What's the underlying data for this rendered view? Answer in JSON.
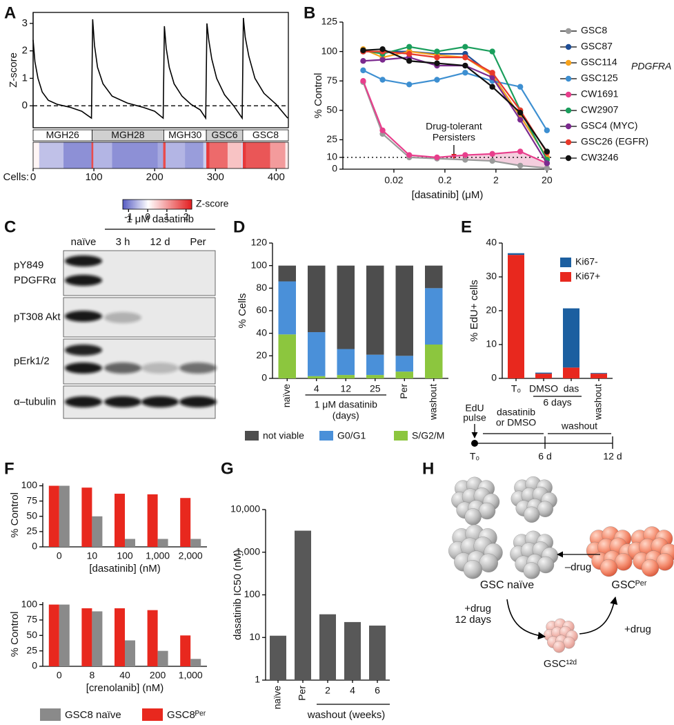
{
  "panel_labels": [
    "A",
    "B",
    "C",
    "D",
    "E",
    "F",
    "G",
    "H"
  ],
  "chart_data": [
    {
      "type": "line",
      "ylabel": "Z-score",
      "color": "#000000",
      "x": [
        0,
        3,
        8,
        15,
        25,
        40,
        60,
        80,
        96,
        98,
        101,
        106,
        115,
        130,
        155,
        180,
        200,
        214,
        216,
        219,
        224,
        232,
        245,
        260,
        275,
        284,
        286,
        289,
        294,
        302,
        315,
        330,
        344,
        346,
        349,
        355,
        365,
        380,
        400,
        419
      ],
      "values": [
        2.4,
        1.6,
        1.0,
        0.5,
        0.2,
        0.05,
        -0.05,
        -0.2,
        -0.45,
        3.15,
        2.2,
        1.4,
        0.8,
        0.35,
        0.1,
        -0.05,
        -0.2,
        -0.45,
        2.9,
        2.1,
        1.4,
        0.8,
        0.35,
        0.05,
        -0.15,
        -0.45,
        3.0,
        2.4,
        1.7,
        1.0,
        0.4,
        0,
        -0.45,
        3.2,
        2.5,
        1.8,
        1.0,
        0.45,
        0.05,
        -0.45
      ],
      "ylim": [
        -0.8,
        3.4
      ],
      "yticks": [
        0,
        1,
        2,
        3
      ],
      "xlim": [
        0,
        420
      ],
      "xticks": [
        0,
        100,
        200,
        300,
        400
      ],
      "xlabel": "Cells:",
      "reference_line": 0,
      "groups": [
        {
          "name": "MGH26",
          "start": 0,
          "end": 97
        },
        {
          "name": "MGH28",
          "start": 97,
          "end": 215
        },
        {
          "name": "MGH30",
          "start": 215,
          "end": 285
        },
        {
          "name": "GSC6",
          "start": 285,
          "end": 345
        },
        {
          "name": "GSC8",
          "start": 345,
          "end": 420
        }
      ],
      "heatmap": {
        "bins": [
          0,
          10,
          50,
          96,
          99,
          130,
          205,
          214,
          218,
          250,
          280,
          285,
          290,
          320,
          343,
          345,
          350,
          390,
          415,
          420
        ],
        "values": [
          0.1,
          -0.5,
          -0.9,
          1.8,
          -0.6,
          -0.9,
          -0.7,
          1.8,
          -0.6,
          -0.8,
          -0.4,
          2.0,
          1.5,
          0.6,
          -0.3,
          2.0,
          1.7,
          1.0,
          0.2
        ],
        "clim": [
          -1.3,
          2.3
        ],
        "cticks": [
          -1,
          0,
          1,
          2
        ],
        "clabel": "Z-score",
        "colors": [
          "#5a5fc4",
          "#ffffff",
          "#e31a1c"
        ]
      }
    },
    {
      "type": "line",
      "xlabel": "[dasatinib] (μM)",
      "ylabel": "% Control",
      "xlog": true,
      "x": [
        0.005,
        0.012,
        0.04,
        0.14,
        0.5,
        1.7,
        6,
        20
      ],
      "xlim": [
        0.002,
        25
      ],
      "xticks": [
        0.02,
        0.2,
        2,
        20
      ],
      "ylim": [
        0,
        125
      ],
      "yticks": [
        0,
        10,
        25,
        50,
        75,
        100,
        125
      ],
      "reference_line": 10,
      "shade_between": [
        0,
        4
      ],
      "shade_color": "#f2c6d8",
      "annotation": [
        "Drug-tolerant",
        "Persisters"
      ],
      "gene_label": "PDGFRA",
      "legend": "right",
      "series": [
        {
          "name": "GSC8",
          "color": "#9a9a9a",
          "values": [
            74,
            30,
            10,
            9,
            8,
            7,
            3,
            1
          ]
        },
        {
          "name": "GSC87",
          "color": "#1f4e96",
          "values": [
            100,
            100,
            100,
            98,
            98,
            80,
            45,
            10
          ]
        },
        {
          "name": "GSC114",
          "color": "#f7a21b",
          "values": [
            102,
            95,
            100,
            97,
            95,
            80,
            45,
            10
          ]
        },
        {
          "name": "GSC125",
          "color": "#3d8fd1",
          "values": [
            84,
            76,
            72,
            76,
            82,
            75,
            70,
            33
          ]
        },
        {
          "name": "CW1691",
          "color": "#e83e8c",
          "values": [
            75,
            33,
            12,
            10,
            12,
            13,
            15,
            5
          ]
        },
        {
          "name": "CW2907",
          "color": "#1a9e5c",
          "values": [
            101,
            98,
            104,
            100,
            104,
            100,
            50,
            8
          ]
        },
        {
          "name": "GSC4 (MYC)",
          "color": "#7b2a8f",
          "values": [
            92,
            93,
            95,
            88,
            88,
            78,
            42,
            5
          ]
        },
        {
          "name": "GSC26 (EGFR)",
          "color": "#e8392a",
          "values": [
            100,
            100,
            98,
            95,
            95,
            82,
            50,
            14
          ]
        },
        {
          "name": "CW3246",
          "color": "#111111",
          "values": [
            101,
            102,
            92,
            90,
            88,
            70,
            48,
            15
          ]
        }
      ]
    },
    {
      "type": "blot",
      "header": "1 μM dasatinib",
      "lanes": [
        "naïve",
        "3 h",
        "12 d",
        "Per"
      ],
      "rows": [
        [
          "pY849",
          "PDGFRα"
        ],
        [
          "pT308 Akt"
        ],
        [
          "pErk1/2"
        ],
        [
          "α–tubulin"
        ]
      ]
    },
    {
      "type": "stacked_bar",
      "ylabel": "% Cells",
      "categories": [
        "naïve",
        "4",
        "12",
        "25",
        "Per",
        "washout"
      ],
      "group_label": [
        "1 μM dasatinib",
        "(days)"
      ],
      "ylim": [
        0,
        120
      ],
      "yticks": [
        0,
        20,
        40,
        60,
        80,
        100,
        120
      ],
      "legend": "bottom",
      "series": [
        {
          "name": "S/G2/M",
          "color": "#8cc63e",
          "values": [
            39,
            2,
            3,
            3,
            6,
            30
          ]
        },
        {
          "name": "G0/G1",
          "color": "#4a90d9",
          "values": [
            47,
            39,
            23,
            18,
            14,
            50
          ]
        },
        {
          "name": "not viable",
          "color": "#4d4d4d",
          "values": [
            14,
            59,
            74,
            79,
            80,
            20
          ]
        }
      ]
    },
    {
      "type": "stacked_bar",
      "ylabel": "% EdU+ cells",
      "categories": [
        "T₀",
        "DMSO",
        "das",
        "washout"
      ],
      "group_label": [
        "6 days"
      ],
      "ylim": [
        0,
        40
      ],
      "yticks": [
        0,
        10,
        20,
        30,
        40
      ],
      "legend": "upper right",
      "series": [
        {
          "name": "Ki67+",
          "color": "#e8281e",
          "values": [
            36.5,
            1.4,
            3.2,
            1.4
          ]
        },
        {
          "name": "Ki67-",
          "color": "#1c5fa0",
          "values": [
            0.5,
            0.3,
            17.5,
            0.2
          ]
        }
      ],
      "timeline": {
        "pulse": [
          "EdU",
          "pulse"
        ],
        "treatment": [
          "dasatinib",
          "or DMSO"
        ],
        "washout": "washout",
        "points": [
          "T₀",
          "6 d",
          "12 d"
        ]
      }
    },
    {
      "type": "grouped_bar",
      "ylabel": "% Control",
      "xlabel": "[dasatinib] (nM)",
      "categories": [
        "0",
        "10",
        "100",
        "1,000",
        "2,000"
      ],
      "ylim": [
        0,
        104
      ],
      "yticks": [
        0,
        25,
        50,
        75,
        100
      ],
      "series": [
        {
          "color": "#e8281e",
          "values": [
            100,
            97,
            87,
            86,
            80
          ]
        },
        {
          "color": "#8a8a8a",
          "values": [
            100,
            50,
            13,
            13,
            13
          ]
        }
      ]
    },
    {
      "type": "grouped_bar",
      "ylabel": "% Control",
      "xlabel": "[crenolanib] (nM)",
      "categories": [
        "0",
        "8",
        "40",
        "200",
        "1,000"
      ],
      "ylim": [
        0,
        104
      ],
      "yticks": [
        0,
        25,
        50,
        75,
        100
      ],
      "legend": "bottom",
      "series": [
        {
          "name": "GSC8ᴾᵉʳ",
          "color": "#e8281e",
          "values": [
            100,
            94,
            94,
            91,
            50
          ]
        },
        {
          "name": "GSC8 naïve",
          "color": "#8a8a8a",
          "values": [
            100,
            89,
            42,
            25,
            12
          ]
        }
      ]
    },
    {
      "type": "bar",
      "ylabel": "dasatinib IC50 (nM)",
      "ylog": true,
      "categories": [
        "naïve",
        "Per",
        "2",
        "4",
        "6"
      ],
      "group_label": [
        "washout (weeks)"
      ],
      "values": [
        11,
        3200,
        35,
        23,
        19
      ],
      "color": "#585858",
      "ylim": [
        1,
        10000
      ],
      "yticks": [
        1,
        10,
        100,
        {
          "value": 1000,
          "label": "1,000"
        },
        {
          "value": 10000,
          "label": "10,000"
        }
      ]
    },
    {
      "type": "diagram",
      "nodes": [
        "GSC naïve",
        "GSC¹²ᵈ",
        "GSCᴾᵉʳ"
      ],
      "edges": [
        [
          "+drug",
          "12 days"
        ],
        [
          "+drug"
        ],
        [
          "–drug"
        ]
      ]
    }
  ]
}
